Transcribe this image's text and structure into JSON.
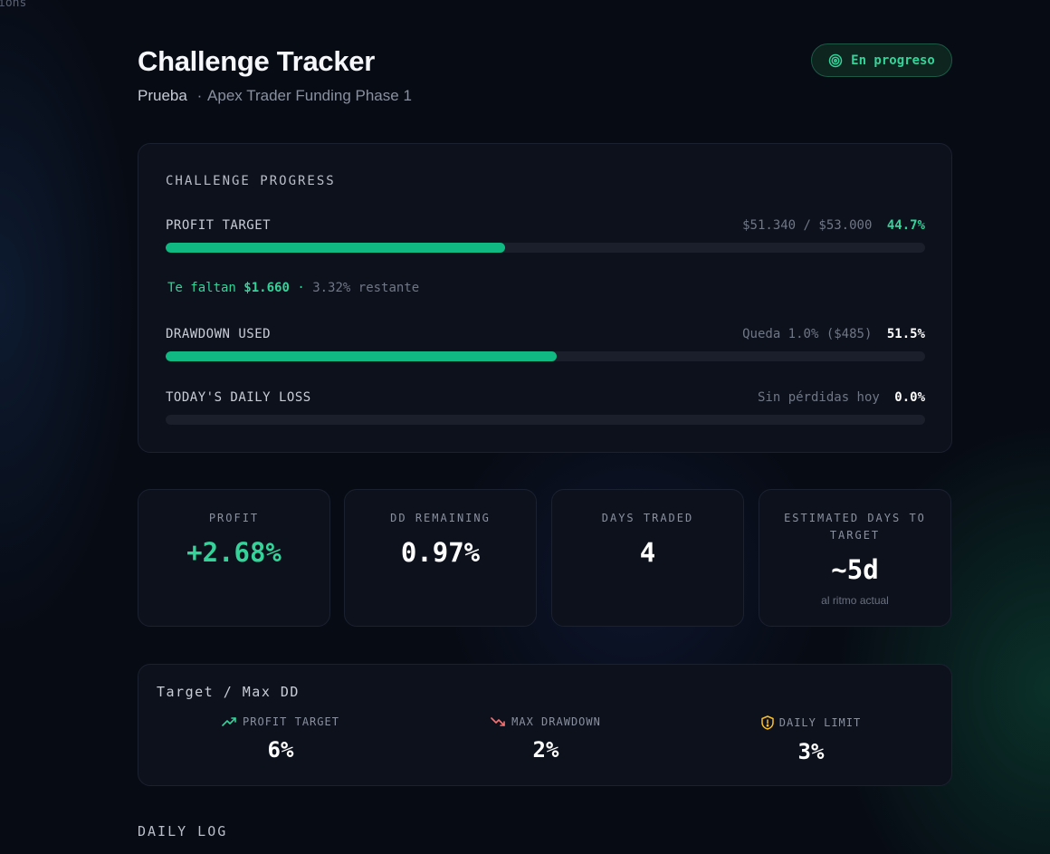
{
  "corner_text": "ions",
  "header": {
    "title": "Challenge Tracker",
    "account": "Prueba",
    "separator": "·",
    "challenge_name": "Apex Trader Funding Phase 1",
    "status_label": "En progreso",
    "status_icon": "target-icon"
  },
  "progress": {
    "title": "CHALLENGE PROGRESS",
    "profit_target": {
      "label": "PROFIT TARGET",
      "amounts": "$51.340 / $53.000",
      "percent": "44.7%",
      "fill": 0.447
    },
    "remaining": {
      "prefix": "Te faltan",
      "amount": "$1.660",
      "sep": "·",
      "rest": "3.32% restante"
    },
    "drawdown": {
      "label": "DRAWDOWN USED",
      "info": "Queda 1.0% ($485)",
      "percent": "51.5%",
      "fill": 0.515
    },
    "daily_loss": {
      "label": "TODAY'S DAILY LOSS",
      "info": "Sin pérdidas hoy",
      "percent": "0.0%",
      "fill": 0
    }
  },
  "stats": [
    {
      "label": "PROFIT",
      "value": "+2.68%",
      "color": "#34d399"
    },
    {
      "label": "DD REMAINING",
      "value": "0.97%",
      "color": "#ffffff"
    },
    {
      "label": "DAYS TRADED",
      "value": "4",
      "color": "#ffffff"
    },
    {
      "label": "ESTIMATED DAYS TO TARGET",
      "value": "~5d",
      "sub": "al ritmo actual",
      "color": "#ffffff"
    }
  ],
  "limits": {
    "title": "Target / Max DD",
    "items": [
      {
        "label": "PROFIT TARGET",
        "value": "6%",
        "icon": "trending-up-icon",
        "color": "#34d399"
      },
      {
        "label": "MAX DRAWDOWN",
        "value": "2%",
        "icon": "trending-down-icon",
        "color": "#f87171"
      },
      {
        "label": "DAILY LIMIT",
        "value": "3%",
        "icon": "shield-alert-icon",
        "color": "#fbbf24"
      }
    ]
  },
  "daily_log": {
    "title": "DAILY LOG"
  }
}
